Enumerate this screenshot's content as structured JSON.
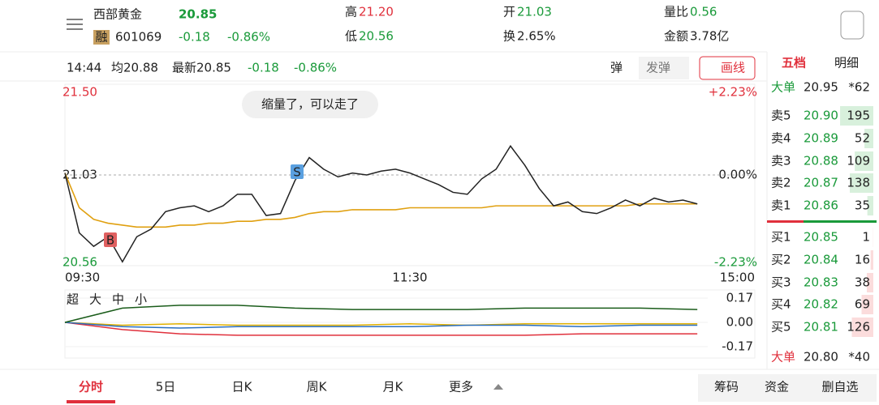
{
  "header": {
    "name": "西部黄金",
    "price": "20.85",
    "tag": "融",
    "code": "601069",
    "change": "-0.18",
    "pct": "-0.86%",
    "stats": [
      {
        "label": "高",
        "value": "21.20"
      },
      {
        "label": "低",
        "value": "20.56"
      },
      {
        "label": "开",
        "value": "21.03"
      },
      {
        "label": "换",
        "value": "2.65%"
      },
      {
        "label": "量比",
        "value": "0.56"
      },
      {
        "label": "金额",
        "value": "3.78亿"
      }
    ]
  },
  "info_bar": {
    "time": "14:44",
    "avg": "均20.88",
    "latest": "最新20.85",
    "change": "-0.18",
    "pct": "-0.86%",
    "buttons": [
      "弹",
      "发弹",
      "画线"
    ]
  },
  "annotation": "缩量了，可以走了",
  "chart": {
    "type": "line",
    "ylim": [
      20.56,
      21.5
    ],
    "yticks": [
      {
        "value": 21.5,
        "label": "21.50"
      },
      {
        "value": 21.03,
        "label": "21.03"
      },
      {
        "value": 20.56,
        "label": "20.56"
      }
    ],
    "pct_labels": [
      "+2.23%",
      "0.00%",
      "-2.23%"
    ],
    "xlabels": [
      "09:30",
      "11:30",
      "15:00"
    ],
    "markers": [
      "S",
      "B"
    ],
    "price": [
      21.04,
      20.73,
      20.66,
      20.71,
      20.58,
      20.71,
      20.75,
      20.84,
      20.86,
      20.87,
      20.84,
      20.87,
      20.93,
      20.93,
      20.82,
      20.83,
      21.0,
      21.12,
      21.06,
      21.02,
      21.04,
      21.03,
      21.05,
      21.06,
      21.04,
      21.01,
      20.98,
      20.94,
      20.93,
      21.01,
      21.06,
      21.18,
      21.08,
      20.96,
      20.87,
      20.89,
      20.84,
      20.83,
      20.86,
      20.9,
      20.87,
      20.91,
      20.89,
      20.9,
      20.88
    ],
    "avg": [
      21.04,
      20.86,
      20.8,
      20.78,
      20.77,
      20.76,
      20.76,
      20.76,
      20.77,
      20.77,
      20.78,
      20.78,
      20.79,
      20.79,
      20.8,
      20.8,
      20.81,
      20.83,
      20.84,
      20.84,
      20.85,
      20.85,
      20.85,
      20.85,
      20.86,
      20.86,
      20.86,
      20.86,
      20.86,
      20.86,
      20.87,
      20.87,
      20.87,
      20.87,
      20.87,
      20.87,
      20.87,
      20.87,
      20.87,
      20.87,
      20.88,
      20.88,
      20.88,
      20.88,
      20.88
    ],
    "price_color": "#222222",
    "avg_color": "#e0a010"
  },
  "flow": {
    "type": "line",
    "ylim": [
      -0.17,
      0.17
    ],
    "yticks": [
      0.17,
      {
        "value": 0,
        "label": "0.00"
      },
      -0.17
    ],
    "series": [
      {
        "name": "超",
        "color": "#e0303c",
        "values": [
          0,
          -0.05,
          -0.08,
          -0.09,
          -0.09,
          -0.09,
          -0.09,
          -0.09,
          -0.09,
          -0.08,
          -0.08,
          -0.08
        ]
      },
      {
        "name": "大",
        "color": "#e0b000",
        "values": [
          0,
          -0.02,
          -0.01,
          -0.02,
          -0.02,
          -0.02,
          -0.01,
          -0.02,
          -0.01,
          -0.01,
          -0.01,
          -0.01
        ]
      },
      {
        "name": "中",
        "color": "#2a6fc0",
        "values": [
          0,
          -0.03,
          -0.04,
          -0.03,
          -0.03,
          -0.03,
          -0.03,
          -0.02,
          -0.02,
          -0.03,
          -0.02,
          -0.02
        ]
      },
      {
        "name": "小",
        "color": "#1a5c1a",
        "values": [
          0,
          0.1,
          0.12,
          0.12,
          0.1,
          0.09,
          0.09,
          0.09,
          0.1,
          0.1,
          0.1,
          0.09
        ]
      }
    ]
  },
  "order_book": {
    "tabs": [
      "五档",
      "明细"
    ],
    "big_top": {
      "label": "大单",
      "price": "20.95",
      "count": "*62"
    },
    "asks": [
      {
        "label": "卖5",
        "price": "20.90",
        "volume": 195
      },
      {
        "label": "卖4",
        "price": "20.89",
        "volume": 52
      },
      {
        "label": "卖3",
        "price": "20.88",
        "volume": 109
      },
      {
        "label": "卖2",
        "price": "20.87",
        "volume": 138
      },
      {
        "label": "卖1",
        "price": "20.86",
        "volume": 35
      }
    ],
    "bids": [
      {
        "label": "买1",
        "price": "20.85",
        "volume": 1
      },
      {
        "label": "买2",
        "price": "20.84",
        "volume": 16
      },
      {
        "label": "买3",
        "price": "20.83",
        "volume": 38
      },
      {
        "label": "买4",
        "price": "20.82",
        "volume": 69
      },
      {
        "label": "买5",
        "price": "20.81",
        "volume": 126
      }
    ],
    "big_bottom": {
      "label": "大单",
      "price": "20.80",
      "count": "*40"
    }
  },
  "tabs": [
    "分时",
    "5日",
    "日K",
    "周K",
    "月K",
    "更多"
  ],
  "actions": [
    "筹码",
    "资金",
    "删自选"
  ]
}
